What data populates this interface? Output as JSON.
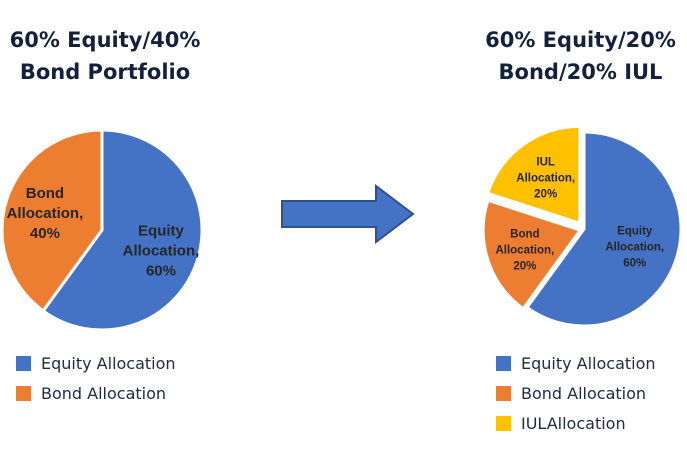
{
  "colors": {
    "equity": "#4472c4",
    "bond": "#ed7d31",
    "iul": "#ffc000",
    "arrow_fill": "#4472c4",
    "arrow_stroke": "#2f528f"
  },
  "arrow": {
    "icon": "right-arrow-icon"
  },
  "chart_data": [
    {
      "type": "pie",
      "title": [
        "60% Equity/40%",
        "Bond Portfolio"
      ],
      "slices": [
        {
          "label_lines": [
            "Equity",
            "Allocation,",
            "60%"
          ],
          "value": 60,
          "color": "#4472c4"
        },
        {
          "label_lines": [
            "Bond",
            "Allocation,",
            "40%"
          ],
          "value": 40,
          "color": "#ed7d31"
        }
      ],
      "legend": [
        "Equity Allocation",
        "Bond Allocation"
      ],
      "legend_position": "bottom-left"
    },
    {
      "type": "pie",
      "title": [
        "60% Equity/20%",
        "Bond/20% IUL"
      ],
      "slices": [
        {
          "label_lines": [
            "Equity",
            "Allocation,",
            "60%"
          ],
          "value": 60,
          "color": "#4472c4"
        },
        {
          "label_lines": [
            "Bond",
            "Allocation,",
            "20%"
          ],
          "value": 20,
          "color": "#ed7d31"
        },
        {
          "label_lines": [
            "IUL",
            "Allocation,",
            "20%"
          ],
          "value": 20,
          "color": "#ffc000"
        }
      ],
      "legend": [
        "Equity Allocation",
        "Bond Allocation",
        "IULAllocation"
      ],
      "legend_position": "bottom-left"
    }
  ]
}
